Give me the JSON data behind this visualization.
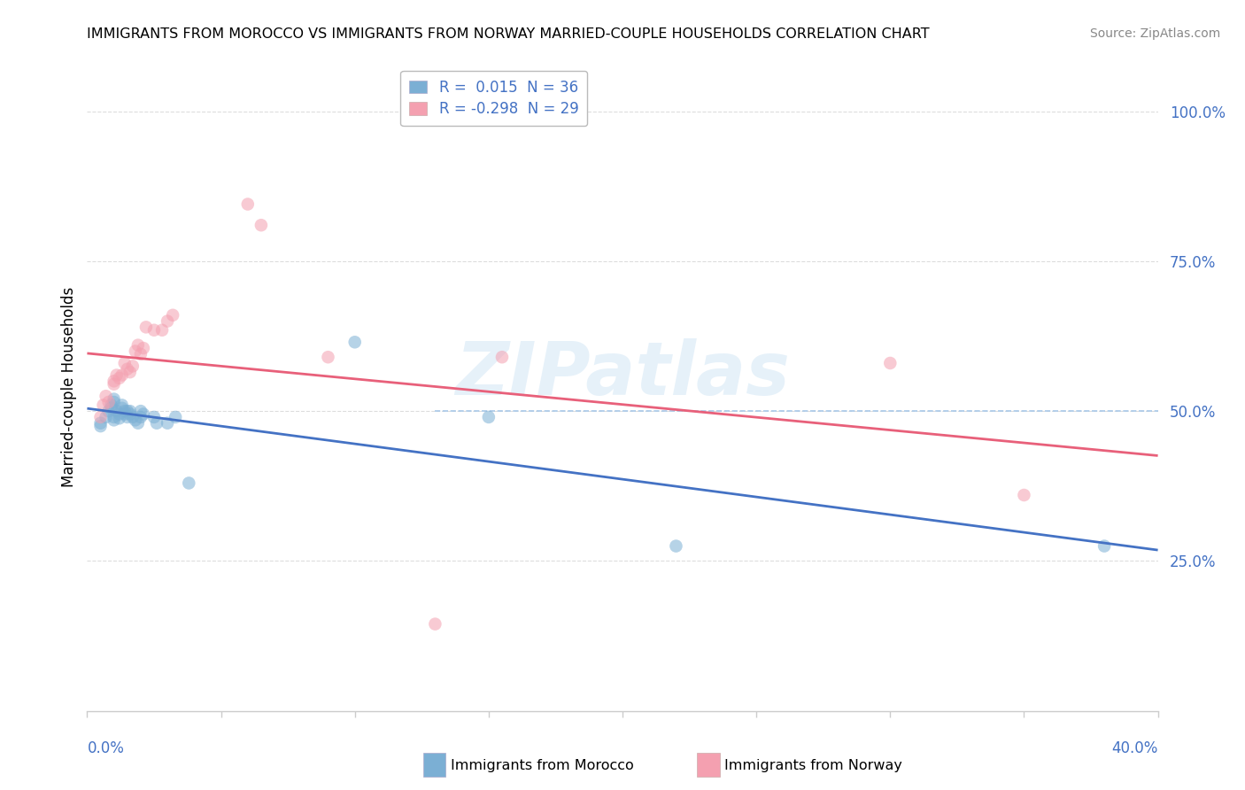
{
  "title": "IMMIGRANTS FROM MOROCCO VS IMMIGRANTS FROM NORWAY MARRIED-COUPLE HOUSEHOLDS CORRELATION CHART",
  "source": "Source: ZipAtlas.com",
  "ylabel": "Married-couple Households",
  "xmin": 0.0,
  "xmax": 0.4,
  "ymin": 0.0,
  "ymax": 1.08,
  "legend_r1": "R =  0.015  N = 36",
  "legend_r2": "R = -0.298  N = 29",
  "color_blue": "#7BAFD4",
  "color_pink": "#F4A0B0",
  "color_line_blue": "#4472C4",
  "color_line_pink": "#E8607A",
  "color_dashed": "#A8C8E8",
  "watermark": "ZIPatlas",
  "morocco_x": [
    0.005,
    0.005,
    0.007,
    0.008,
    0.009,
    0.009,
    0.01,
    0.01,
    0.01,
    0.01,
    0.011,
    0.012,
    0.012,
    0.013,
    0.013,
    0.014,
    0.014,
    0.015,
    0.015,
    0.016,
    0.016,
    0.017,
    0.018,
    0.019,
    0.02,
    0.02,
    0.021,
    0.025,
    0.026,
    0.03,
    0.033,
    0.038,
    0.1,
    0.15,
    0.22,
    0.38
  ],
  "morocco_y": [
    0.475,
    0.48,
    0.49,
    0.5,
    0.505,
    0.51,
    0.515,
    0.52,
    0.49,
    0.485,
    0.5,
    0.495,
    0.488,
    0.51,
    0.505,
    0.5,
    0.495,
    0.49,
    0.5,
    0.5,
    0.495,
    0.49,
    0.485,
    0.48,
    0.5,
    0.49,
    0.495,
    0.49,
    0.48,
    0.48,
    0.49,
    0.38,
    0.615,
    0.49,
    0.275,
    0.275
  ],
  "norway_x": [
    0.005,
    0.006,
    0.007,
    0.008,
    0.01,
    0.01,
    0.011,
    0.012,
    0.013,
    0.014,
    0.015,
    0.016,
    0.017,
    0.018,
    0.019,
    0.02,
    0.021,
    0.022,
    0.025,
    0.028,
    0.03,
    0.032,
    0.06,
    0.065,
    0.09,
    0.13,
    0.155,
    0.3,
    0.35
  ],
  "norway_y": [
    0.49,
    0.51,
    0.525,
    0.515,
    0.545,
    0.55,
    0.56,
    0.555,
    0.56,
    0.58,
    0.57,
    0.565,
    0.575,
    0.6,
    0.61,
    0.595,
    0.605,
    0.64,
    0.635,
    0.635,
    0.65,
    0.66,
    0.845,
    0.81,
    0.59,
    0.145,
    0.59,
    0.58,
    0.36
  ]
}
